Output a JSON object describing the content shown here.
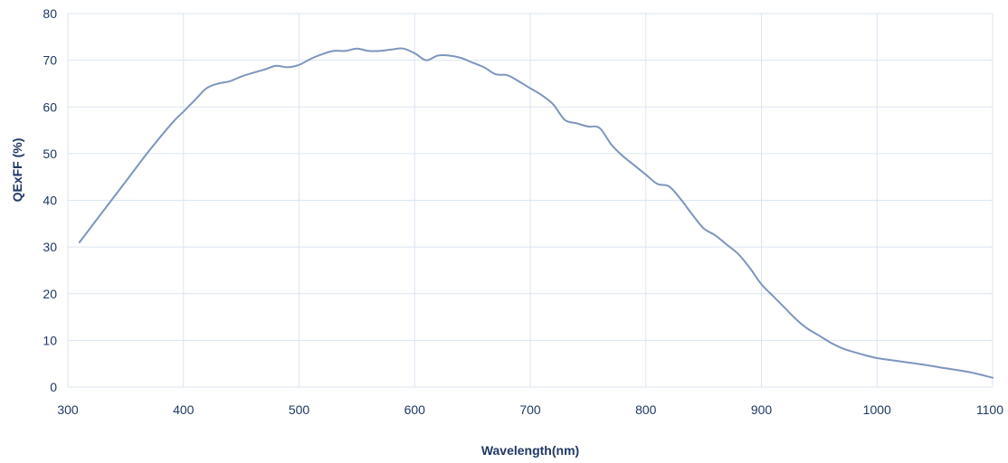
{
  "chart_data": {
    "type": "line",
    "title": "",
    "xlabel": "Wavelength(nm)",
    "ylabel": "QExFF (%)",
    "xlim": [
      300,
      1100
    ],
    "ylim": [
      0,
      80
    ],
    "x_ticks": [
      300,
      400,
      500,
      600,
      700,
      800,
      900,
      1000,
      1100
    ],
    "y_ticks": [
      0,
      10,
      20,
      30,
      40,
      50,
      60,
      70,
      80
    ],
    "grid": true,
    "legend": "none",
    "line_color": "#7d96bd",
    "grid_color": "#dbe5f0",
    "text_color": "#1f3864",
    "series": [
      {
        "x": [
          310,
          330,
          350,
          370,
          390,
          400,
          410,
          420,
          430,
          440,
          450,
          460,
          470,
          480,
          490,
          500,
          510,
          520,
          530,
          540,
          550,
          560,
          570,
          580,
          590,
          600,
          610,
          620,
          630,
          640,
          650,
          660,
          670,
          680,
          690,
          700,
          710,
          720,
          730,
          740,
          750,
          760,
          770,
          780,
          790,
          800,
          810,
          820,
          830,
          840,
          850,
          860,
          870,
          880,
          890,
          900,
          910,
          920,
          930,
          940,
          950,
          960,
          970,
          980,
          990,
          1000,
          1020,
          1040,
          1060,
          1080,
          1100
        ],
        "y": [
          31,
          37.5,
          44,
          50.5,
          56.5,
          59,
          61.5,
          64,
          65,
          65.5,
          66.5,
          67.3,
          68,
          68.8,
          68.5,
          69,
          70.3,
          71.3,
          72,
          72,
          72.5,
          72,
          72,
          72.3,
          72.5,
          71.5,
          70,
          71,
          71,
          70.5,
          69.5,
          68.5,
          67,
          66.8,
          65.5,
          64,
          62.5,
          60.5,
          57.2,
          56.5,
          55.8,
          55.5,
          52,
          49.5,
          47.5,
          45.5,
          43.5,
          43,
          40.3,
          37,
          34,
          32.5,
          30.5,
          28.5,
          25.5,
          22,
          19.5,
          17,
          14.5,
          12.5,
          11,
          9.5,
          8.3,
          7.5,
          6.8,
          6.2,
          5.5,
          4.8,
          4,
          3.2,
          2
        ]
      }
    ]
  }
}
